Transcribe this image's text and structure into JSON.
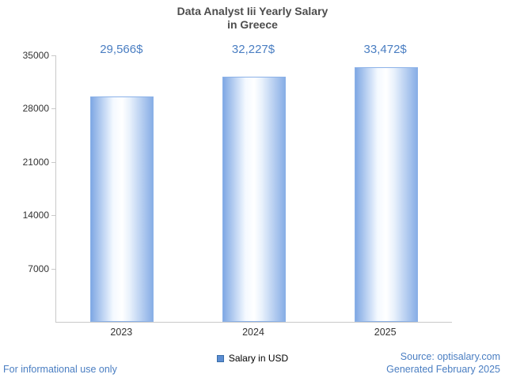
{
  "title": {
    "line1": "Data Analyst Iii Yearly Salary",
    "line2": "in Greece"
  },
  "chart_data": {
    "type": "bar",
    "title": "Data Analyst Iii Yearly Salary in Greece",
    "categories": [
      "2023",
      "2024",
      "2025"
    ],
    "values": [
      29566,
      32227,
      33472
    ],
    "value_labels": [
      "29,566$",
      "32,227$",
      "33,472$"
    ],
    "series": [
      {
        "name": "Salary in USD",
        "values": [
          29566,
          32227,
          33472
        ]
      }
    ],
    "xlabel": "",
    "ylabel": "",
    "ylim": [
      0,
      35000
    ],
    "yticks": [
      7000,
      14000,
      21000,
      28000,
      35000
    ],
    "grid": false,
    "legend_position": "bottom"
  },
  "legend": {
    "label": "Salary in USD"
  },
  "footer": {
    "left": "For informational use only",
    "source": "Source: optisalary.com",
    "generated": "Generated February 2025"
  },
  "colors": {
    "value_label": "#4a7ec2",
    "bar_fill_edge": "#7fa8e4",
    "bar_fill_center": "#ffffff",
    "axis_line": "#c9c9c9",
    "title_text": "#4d4d4d",
    "footer_text": "#4a7ec2",
    "legend_swatch": "#5b8dd3"
  }
}
